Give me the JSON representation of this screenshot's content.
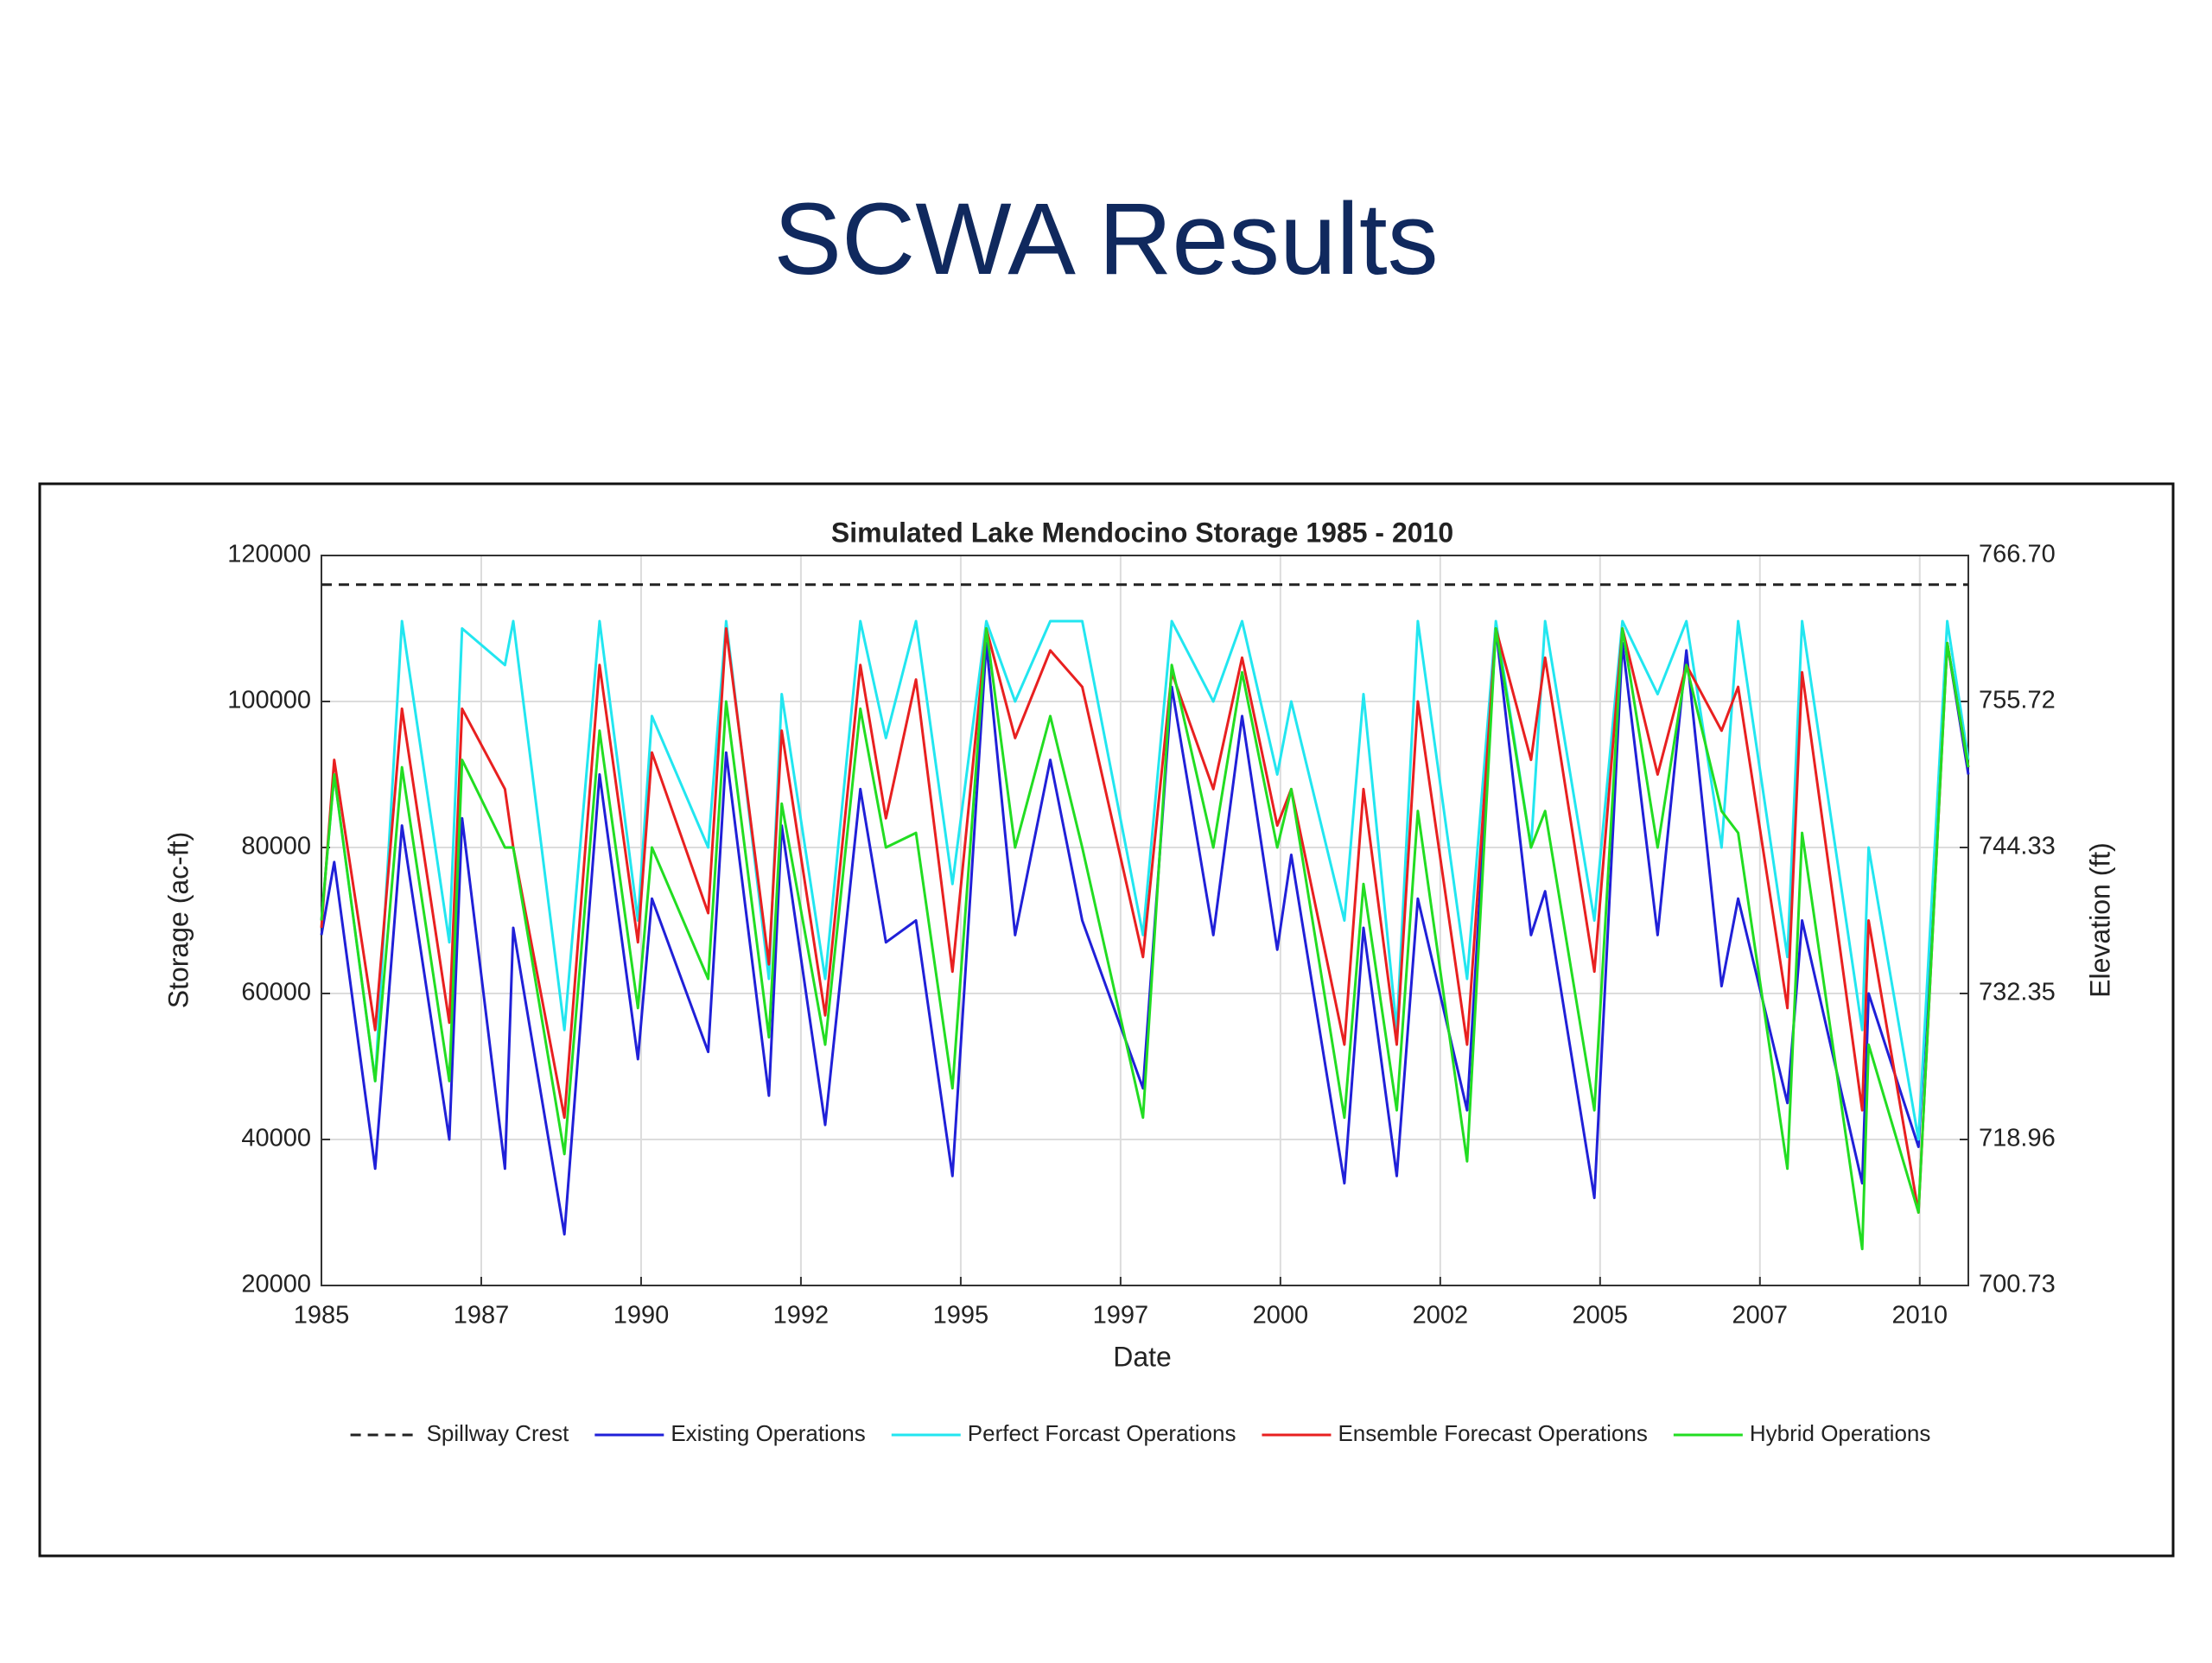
{
  "slide_title": "SCWA Results",
  "chart_data": {
    "type": "line",
    "title": "Simulated Lake Mendocino Storage 1985 - 2010",
    "x_label": "Date",
    "y_label": "Storage (ac-ft)",
    "y2_label": "Elevation (ft)",
    "xlim": [
      1985,
      2010.76
    ],
    "ylim": [
      20000,
      120000
    ],
    "y2lim": [
      700.73,
      766.7
    ],
    "xticks": [
      1985,
      {
        "value": 1987.5,
        "label": "1987"
      },
      1990,
      {
        "value": 1992.5,
        "label": "1992"
      },
      1995,
      {
        "value": 1997.5,
        "label": "1997"
      },
      2000,
      {
        "value": 2002.5,
        "label": "2002"
      },
      2005,
      {
        "value": 2007.5,
        "label": "2007"
      },
      2010
    ],
    "yticks": [
      20000,
      40000,
      60000,
      80000,
      100000,
      120000
    ],
    "y2ticks": [
      700.73,
      718.96,
      732.35,
      744.33,
      755.72,
      {
        "value": 766.7,
        "label": "766.70"
      }
    ],
    "grid": true,
    "reference_lines": [
      {
        "name": "Spillway Crest",
        "value": 116000,
        "color": "#222222",
        "dashed": true
      }
    ],
    "x": [
      1985.0,
      1985.2,
      1985.84,
      1986.26,
      1987.0,
      1987.2,
      1987.87,
      1988.0,
      1988.8,
      1989.35,
      1989.95,
      1990.17,
      1991.05,
      1991.33,
      1992.0,
      1992.2,
      1992.88,
      1993.43,
      1993.83,
      1994.3,
      1994.87,
      1995.4,
      1995.85,
      1996.4,
      1996.9,
      1997.85,
      1998.3,
      1998.95,
      1999.4,
      1999.95,
      2000.17,
      2001.0,
      2001.3,
      2001.82,
      2002.15,
      2002.92,
      2003.37,
      2003.92,
      2004.14,
      2004.91,
      2005.35,
      2005.9,
      2006.35,
      2006.9,
      2007.16,
      2007.93,
      2008.16,
      2009.1,
      2009.2,
      2009.98,
      2010.43,
      2010.76
    ],
    "series": [
      {
        "name": "Existing Operations",
        "color": "#2020d8",
        "values": [
          68000,
          78000,
          36000,
          83000,
          40000,
          84000,
          36000,
          69000,
          27000,
          90000,
          51000,
          73000,
          52000,
          93000,
          46000,
          83000,
          42000,
          88000,
          67000,
          70000,
          35000,
          108000,
          68000,
          92000,
          70000,
          47000,
          102000,
          68000,
          98000,
          66000,
          79000,
          34000,
          69000,
          35000,
          73000,
          44000,
          110000,
          68000,
          74000,
          32000,
          108000,
          68000,
          107000,
          61000,
          73000,
          45000,
          70000,
          34000,
          60000,
          39000,
          108000,
          90000
        ]
      },
      {
        "name": "Perfect Forcast Operations",
        "color": "#22e6f0",
        "values": [
          70000,
          90000,
          48000,
          111000,
          67000,
          110000,
          105000,
          111000,
          55000,
          111000,
          70000,
          98000,
          80000,
          111000,
          62000,
          101000,
          62000,
          111000,
          95000,
          111000,
          75000,
          111000,
          100000,
          111000,
          111000,
          68000,
          111000,
          100000,
          111000,
          90000,
          100000,
          70000,
          101000,
          55000,
          111000,
          62000,
          111000,
          80000,
          111000,
          70000,
          111000,
          101000,
          111000,
          80000,
          111000,
          65000,
          111000,
          55000,
          80000,
          40000,
          111000,
          92000
        ]
      },
      {
        "name": "Ensemble Forecast Operations",
        "color": "#e82020",
        "values": [
          69000,
          92000,
          55000,
          99000,
          56000,
          99000,
          88000,
          80000,
          43000,
          105000,
          67000,
          93000,
          71000,
          110000,
          64000,
          96000,
          57000,
          105000,
          84000,
          103000,
          63000,
          110000,
          95000,
          107000,
          102000,
          65000,
          104000,
          88000,
          106000,
          83000,
          88000,
          53000,
          88000,
          53000,
          100000,
          53000,
          110000,
          92000,
          106000,
          63000,
          110000,
          90000,
          105000,
          96000,
          102000,
          58000,
          104000,
          44000,
          70000,
          30000,
          108000,
          91000
        ]
      },
      {
        "name": "Hybrid Operations",
        "color": "#22dd22",
        "values": [
          70000,
          90000,
          48000,
          91000,
          48000,
          92000,
          80000,
          80000,
          38000,
          96000,
          58000,
          80000,
          62000,
          100000,
          54000,
          86000,
          53000,
          99000,
          80000,
          82000,
          47000,
          110000,
          80000,
          98000,
          80000,
          43000,
          105000,
          80000,
          104000,
          80000,
          88000,
          43000,
          75000,
          44000,
          85000,
          37000,
          110000,
          80000,
          85000,
          44000,
          110000,
          80000,
          105000,
          85000,
          82000,
          36000,
          82000,
          25000,
          53000,
          30000,
          108000,
          91000
        ]
      }
    ]
  }
}
